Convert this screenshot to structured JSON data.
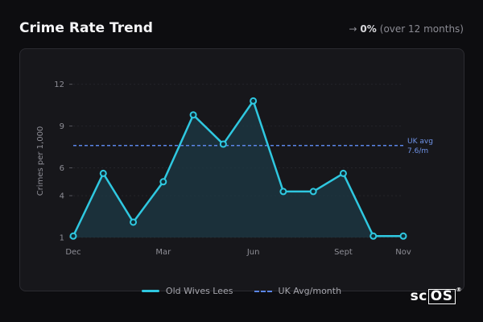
{
  "header": {
    "title": "Crime Rate Trend",
    "trend_arrow": "→",
    "trend_value": "0%",
    "trend_period": "(over 12 months)"
  },
  "colors": {
    "series": "#2fc8e0",
    "reference": "#5b86e8",
    "area_fill": "#1d3a45"
  },
  "chart_data": {
    "type": "line",
    "ylabel": "Crimes per 1,000",
    "xlabel": "",
    "ylim": [
      1,
      12.5
    ],
    "yticks": [
      1,
      4,
      6,
      9,
      12
    ],
    "x_tick_labels": [
      {
        "index": 0,
        "label": "Dec"
      },
      {
        "index": 3,
        "label": "Mar"
      },
      {
        "index": 6,
        "label": "Jun"
      },
      {
        "index": 9,
        "label": "Sept"
      },
      {
        "index": 11,
        "label": "Nov"
      }
    ],
    "grid": true,
    "series": [
      {
        "name": "Old Wives Lees",
        "values": [
          1.1,
          5.6,
          2.1,
          5.0,
          9.8,
          7.7,
          10.8,
          4.3,
          4.3,
          5.6,
          1.1,
          1.1
        ]
      }
    ],
    "reference_line": {
      "name": "UK Avg/month",
      "value": 7.6,
      "label_line1": "UK avg",
      "label_line2": "7.6/m"
    }
  },
  "legend": {
    "series_label": "Old Wives Lees",
    "reference_label": "UK Avg/month"
  },
  "branding": {
    "logo_sc": "sc",
    "logo_os": "OS",
    "logo_mark": "®"
  }
}
